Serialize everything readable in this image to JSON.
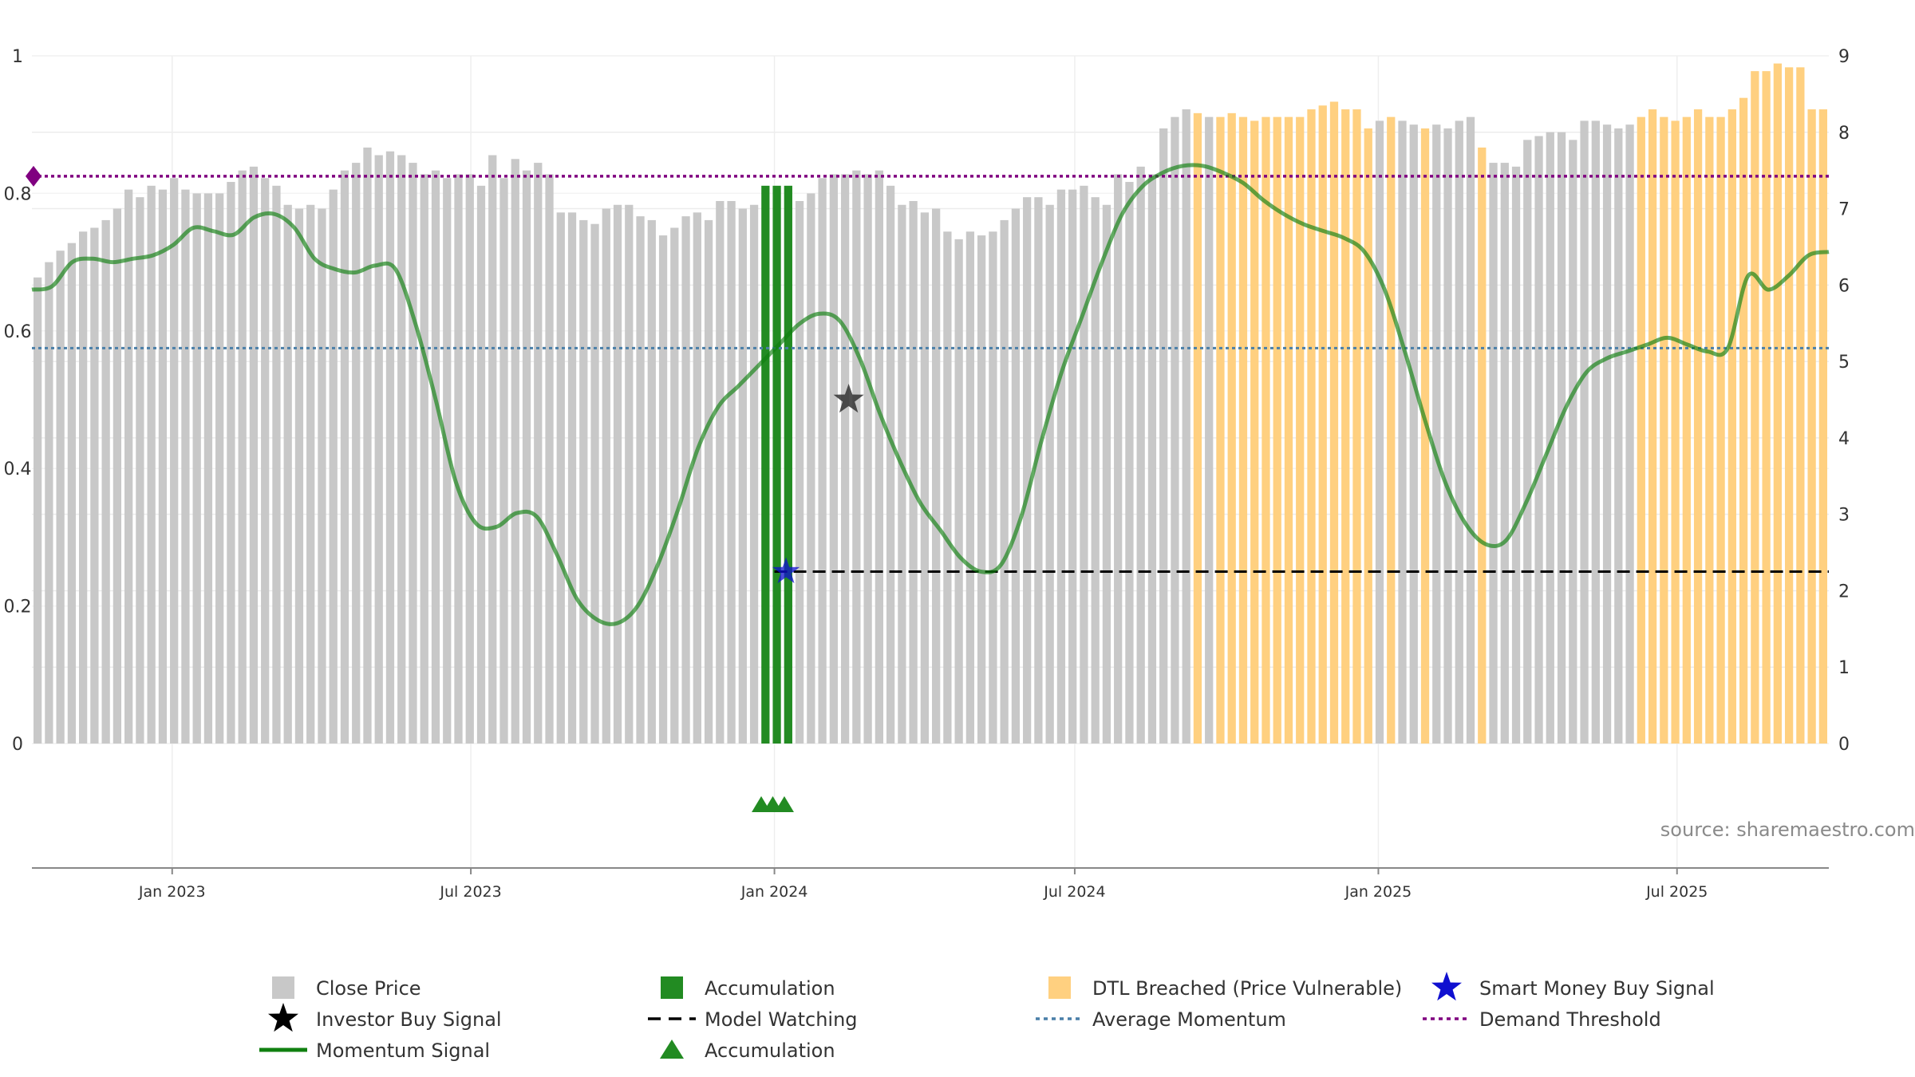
{
  "chart_data": {
    "type": "bar",
    "title": "",
    "source": "source: sharemaestro.com",
    "left_axis": {
      "ticks": [
        "0",
        "0.2",
        "0.4",
        "0.6",
        "0.8",
        "1"
      ],
      "range": [
        0,
        1
      ]
    },
    "right_axis": {
      "ticks": [
        "0",
        "1",
        "2",
        "3",
        "4",
        "5",
        "6",
        "7",
        "8",
        "9"
      ],
      "range": [
        0,
        9
      ]
    },
    "x_axis": {
      "start": "2022-10-08",
      "end": "2025-10-01",
      "ticks": [
        {
          "date": "2023-01-01",
          "label": "Jan 2023"
        },
        {
          "date": "2023-07-01",
          "label": "Jul 2023"
        },
        {
          "date": "2024-01-01",
          "label": "Jan 2024"
        },
        {
          "date": "2024-07-01",
          "label": "Jul 2024"
        },
        {
          "date": "2025-01-01",
          "label": "Jan 2025"
        },
        {
          "date": "2025-07-01",
          "label": "Jul 2025"
        }
      ]
    },
    "colors": {
      "close": "#c8c8c8",
      "accumulation": "#228b22",
      "dtl": "#ffd080",
      "momentum": "#108010",
      "avg_momentum": "#4a7fa8",
      "demand": "#800080",
      "smart_money": "#1010d0",
      "investor": "#000000",
      "watching": "#000000"
    },
    "close_price": [
      6.1,
      6.3,
      6.45,
      6.55,
      6.7,
      6.75,
      6.85,
      7.0,
      7.25,
      7.15,
      7.3,
      7.25,
      7.4,
      7.25,
      7.2,
      7.2,
      7.2,
      7.35,
      7.5,
      7.55,
      7.4,
      7.3,
      7.05,
      7.0,
      7.05,
      7.0,
      7.25,
      7.5,
      7.6,
      7.8,
      7.7,
      7.75,
      7.7,
      7.6,
      7.45,
      7.5,
      7.4,
      7.45,
      7.45,
      7.3,
      7.7,
      7.4,
      7.65,
      7.5,
      7.6,
      7.45,
      6.95,
      6.95,
      6.85,
      6.8,
      7.0,
      7.05,
      7.05,
      6.9,
      6.85,
      6.65,
      6.75,
      6.9,
      6.95,
      6.85,
      7.1,
      7.1,
      7.0,
      7.05,
      7.3,
      7.3,
      7.3,
      7.1,
      7.2,
      7.4,
      7.45,
      7.45,
      7.5,
      7.45,
      7.5,
      7.3,
      7.05,
      7.1,
      6.95,
      7.0,
      6.7,
      6.6,
      6.7,
      6.65,
      6.7,
      6.85,
      7.0,
      7.15,
      7.15,
      7.05,
      7.25,
      7.25,
      7.3,
      7.15,
      7.05,
      7.45,
      7.35,
      7.55,
      7.45,
      8.05,
      8.2,
      8.3,
      8.25,
      8.2,
      8.2,
      8.25,
      8.2,
      8.15,
      8.2,
      8.2,
      8.2,
      8.2,
      8.3,
      8.35,
      8.4,
      8.3,
      8.3,
      8.05,
      8.15,
      8.2,
      8.15,
      8.1,
      8.05,
      8.1,
      8.05,
      8.15,
      8.2,
      7.8,
      7.6,
      7.6,
      7.55,
      7.9,
      7.95,
      8.0,
      8.0,
      7.9,
      8.15,
      8.15,
      8.1,
      8.05,
      8.1,
      8.2,
      8.3,
      8.2,
      8.15,
      8.2,
      8.3,
      8.2,
      8.2,
      8.3,
      8.45,
      8.8,
      8.8,
      8.9,
      8.85,
      8.85,
      8.3,
      8.3
    ],
    "bar_state": [
      "c",
      "c",
      "c",
      "c",
      "c",
      "c",
      "c",
      "c",
      "c",
      "c",
      "c",
      "c",
      "c",
      "c",
      "c",
      "c",
      "c",
      "c",
      "c",
      "c",
      "c",
      "c",
      "c",
      "c",
      "c",
      "c",
      "c",
      "c",
      "c",
      "c",
      "c",
      "c",
      "c",
      "c",
      "c",
      "c",
      "c",
      "c",
      "c",
      "c",
      "c",
      "c",
      "c",
      "c",
      "c",
      "c",
      "c",
      "c",
      "c",
      "c",
      "c",
      "c",
      "c",
      "c",
      "c",
      "c",
      "c",
      "c",
      "c",
      "c",
      "c",
      "c",
      "c",
      "c",
      "a",
      "a",
      "a",
      "c",
      "c",
      "c",
      "c",
      "c",
      "c",
      "c",
      "c",
      "c",
      "c",
      "c",
      "c",
      "c",
      "c",
      "c",
      "c",
      "c",
      "c",
      "c",
      "c",
      "c",
      "c",
      "c",
      "c",
      "c",
      "c",
      "c",
      "c",
      "c",
      "c",
      "c",
      "c",
      "c",
      "c",
      "c",
      "d",
      "c",
      "d",
      "d",
      "d",
      "d",
      "d",
      "d",
      "d",
      "d",
      "d",
      "d",
      "d",
      "d",
      "d",
      "d",
      "c",
      "d",
      "c",
      "c",
      "d",
      "c",
      "c",
      "c",
      "c",
      "d",
      "c",
      "c",
      "c",
      "c",
      "c",
      "c",
      "c",
      "c",
      "c",
      "c",
      "c",
      "c",
      "c",
      "d",
      "d",
      "d",
      "d",
      "d",
      "d",
      "d",
      "d",
      "d",
      "d",
      "d",
      "d",
      "d",
      "d",
      "d",
      "d",
      "d",
      "d"
    ],
    "momentum_signal": [
      0.66,
      0.665,
      0.7,
      0.705,
      0.7,
      0.705,
      0.71,
      0.725,
      0.75,
      0.745,
      0.74,
      0.765,
      0.77,
      0.75,
      0.705,
      0.69,
      0.685,
      0.695,
      0.69,
      0.61,
      0.5,
      0.38,
      0.32,
      0.315,
      0.335,
      0.33,
      0.275,
      0.21,
      0.18,
      0.175,
      0.2,
      0.26,
      0.34,
      0.43,
      0.49,
      0.52,
      0.55,
      0.58,
      0.61,
      0.625,
      0.615,
      0.56,
      0.48,
      0.41,
      0.35,
      0.31,
      0.27,
      0.25,
      0.26,
      0.33,
      0.44,
      0.54,
      0.62,
      0.7,
      0.77,
      0.81,
      0.83,
      0.84,
      0.84,
      0.83,
      0.815,
      0.79,
      0.77,
      0.755,
      0.745,
      0.735,
      0.715,
      0.66,
      0.57,
      0.47,
      0.38,
      0.32,
      0.29,
      0.295,
      0.35,
      0.42,
      0.49,
      0.54,
      0.56,
      0.57,
      0.58,
      0.59,
      0.58,
      0.57,
      0.575,
      0.68,
      0.66,
      0.68,
      0.71,
      0.715
    ],
    "average_momentum": 0.575,
    "demand_threshold": 0.825,
    "model_watching": {
      "start": "2024-01-01",
      "end": "2025-10-01",
      "value": 0.25
    },
    "smart_money_buy_signal": {
      "date": "2024-01-08",
      "value": 0.25
    },
    "investor_buy_signal": {
      "date": "2024-02-15",
      "value": 0.5
    },
    "accumulation_markers": [
      "2023-12-24",
      "2023-12-31",
      "2024-01-07"
    ],
    "legend": [
      {
        "key": "close",
        "label": "Close Price"
      },
      {
        "key": "accumulation",
        "label": "Accumulation"
      },
      {
        "key": "dtl",
        "label": "DTL Breached (Price Vulnerable)"
      },
      {
        "key": "smart_money",
        "label": "Smart Money Buy Signal"
      },
      {
        "key": "investor",
        "label": "Investor Buy Signal"
      },
      {
        "key": "watching",
        "label": "Model Watching"
      },
      {
        "key": "avg_momentum",
        "label": "Average Momentum"
      },
      {
        "key": "demand",
        "label": "Demand Threshold"
      },
      {
        "key": "momentum",
        "label": "Momentum Signal"
      },
      {
        "key": "acc_marker",
        "label": "Accumulation"
      }
    ]
  }
}
